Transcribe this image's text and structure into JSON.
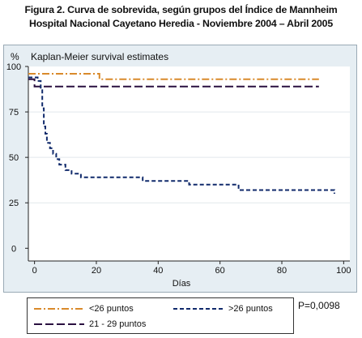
{
  "figure": {
    "title_line1": "Figura 2. Curva de sobrevida, según grupos del Índice de Mannheim",
    "title_line2": "Hospital Nacional Cayetano Heredia - Noviembre 2004 – Abril 2005"
  },
  "p_value": "P=0,0098",
  "chart_data": {
    "type": "line",
    "subtitle": "Kaplan-Meier survival estimates",
    "ylabel": "%",
    "xlabel": "Días",
    "xlim": [
      -2,
      102
    ],
    "ylim": [
      -7,
      100
    ],
    "xticks": [
      0,
      20,
      40,
      60,
      80,
      100
    ],
    "yticks": [
      0,
      25,
      50,
      75,
      100
    ],
    "xtick_labels": [
      "0",
      "20",
      "40",
      "60",
      "80",
      "100"
    ],
    "ytick_labels": [
      "0",
      "25",
      "50",
      "75",
      "100"
    ],
    "grid": "horizontal",
    "legend_position": "bottom",
    "series": [
      {
        "name": "<26 puntos",
        "color": "#d98a2b",
        "dash": "dash-dot",
        "points": [
          [
            -2,
            96
          ],
          [
            21,
            96
          ],
          [
            21,
            93
          ],
          [
            92,
            93
          ]
        ]
      },
      {
        "name": "21 - 29 puntos",
        "color": "#2a1040",
        "dash": "long-dash",
        "points": [
          [
            -2,
            93
          ],
          [
            0,
            93
          ],
          [
            0,
            89
          ],
          [
            92,
            89
          ]
        ]
      },
      {
        "name": ">26 puntos",
        "color": "#102a6b",
        "dash": "short-dash",
        "points": [
          [
            -2,
            94
          ],
          [
            1,
            94
          ],
          [
            1,
            92
          ],
          [
            2,
            92
          ],
          [
            2,
            87
          ],
          [
            2.5,
            87
          ],
          [
            2.5,
            77
          ],
          [
            3,
            77
          ],
          [
            3,
            67
          ],
          [
            3.5,
            67
          ],
          [
            3.5,
            63
          ],
          [
            4,
            63
          ],
          [
            4,
            58
          ],
          [
            5,
            58
          ],
          [
            5,
            55
          ],
          [
            6,
            55
          ],
          [
            6,
            52
          ],
          [
            7,
            52
          ],
          [
            7,
            49
          ],
          [
            8,
            49
          ],
          [
            8,
            46
          ],
          [
            10,
            46
          ],
          [
            10,
            43
          ],
          [
            12,
            43
          ],
          [
            12,
            41
          ],
          [
            15,
            41
          ],
          [
            15,
            39
          ],
          [
            35,
            39
          ],
          [
            35,
            37
          ],
          [
            50,
            37
          ],
          [
            50,
            35
          ],
          [
            66,
            35
          ],
          [
            66,
            32
          ],
          [
            97,
            32
          ],
          [
            97,
            30
          ]
        ]
      }
    ]
  }
}
